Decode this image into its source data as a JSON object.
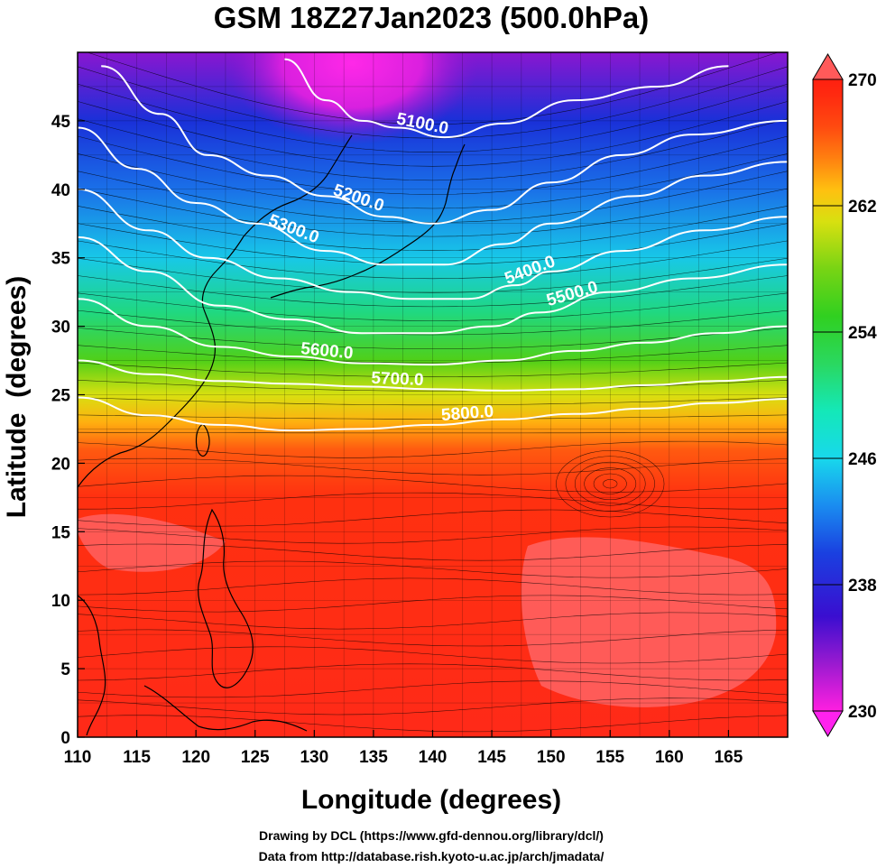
{
  "chart_data": {
    "type": "heatmap",
    "title": "GSM 18Z27Jan2023 (500.0hPa)",
    "xlabel": "Longitude (degrees)",
    "ylabel": "Latitude  (degrees)",
    "xlim": [
      110,
      170
    ],
    "ylim": [
      0,
      50
    ],
    "x_ticks": [
      110,
      115,
      120,
      125,
      130,
      135,
      140,
      145,
      150,
      155,
      160,
      165
    ],
    "y_ticks": [
      0,
      5,
      10,
      15,
      20,
      25,
      30,
      35,
      40,
      45
    ],
    "shading": {
      "quantity_range": [
        230,
        270
      ],
      "colorbar_ticks": [
        230,
        238,
        246,
        254,
        262,
        270
      ],
      "colorbar_stops": [
        {
          "v": 230,
          "c": "#ff1fe0"
        },
        {
          "v": 233,
          "c": "#9a1ad0"
        },
        {
          "v": 236,
          "c": "#3a0ed0"
        },
        {
          "v": 240,
          "c": "#1a40e0"
        },
        {
          "v": 243,
          "c": "#1a8cf0"
        },
        {
          "v": 246,
          "c": "#18d8ec"
        },
        {
          "v": 249,
          "c": "#14e8b8"
        },
        {
          "v": 252,
          "c": "#2ad860"
        },
        {
          "v": 255,
          "c": "#30d020"
        },
        {
          "v": 258,
          "c": "#78d414"
        },
        {
          "v": 261,
          "c": "#d8e010"
        },
        {
          "v": 263,
          "c": "#ffc010"
        },
        {
          "v": 265,
          "c": "#ff8010"
        },
        {
          "v": 267,
          "c": "#ff4a10"
        },
        {
          "v": 269,
          "c": "#ff2a10"
        },
        {
          "v": 270,
          "c": "#ff2010"
        }
      ]
    },
    "contours": [
      {
        "level": "5100.0",
        "points": [
          [
            127.5,
            49.5
          ],
          [
            131,
            46.5
          ],
          [
            134,
            45
          ],
          [
            137,
            44.5
          ],
          [
            141,
            43.8
          ],
          [
            146,
            44.8
          ],
          [
            152,
            46.5
          ],
          [
            159,
            47.5
          ],
          [
            165,
            49
          ]
        ]
      },
      {
        "level": "5200.0",
        "points": [
          [
            112,
            49
          ],
          [
            117,
            45.5
          ],
          [
            121,
            42.5
          ],
          [
            126,
            41
          ],
          [
            131,
            39.5
          ],
          [
            136,
            38
          ],
          [
            140,
            37.5
          ],
          [
            145,
            38.5
          ],
          [
            150,
            40.5
          ],
          [
            156,
            42.5
          ],
          [
            162,
            44
          ],
          [
            170,
            45
          ]
        ]
      },
      {
        "level": "5300.0",
        "points": [
          [
            110,
            44.5
          ],
          [
            115,
            41.5
          ],
          [
            120,
            39
          ],
          [
            125,
            37.5
          ],
          [
            131,
            35.5
          ],
          [
            136,
            34.5
          ],
          [
            141,
            34.5
          ],
          [
            146,
            36
          ],
          [
            150,
            37.5
          ],
          [
            157,
            39.5
          ],
          [
            163,
            41
          ],
          [
            170,
            42
          ]
        ]
      },
      {
        "level": "5400.0",
        "points": [
          [
            110,
            40
          ],
          [
            116,
            37
          ],
          [
            121,
            35
          ],
          [
            127,
            33.5
          ],
          [
            133,
            32.5
          ],
          [
            138,
            32
          ],
          [
            143,
            32
          ],
          [
            147,
            33
          ],
          [
            150,
            34
          ],
          [
            156,
            35.5
          ],
          [
            163,
            37
          ],
          [
            170,
            38
          ]
        ]
      },
      {
        "level": "5500.0",
        "points": [
          [
            110,
            36.5
          ],
          [
            116,
            34
          ],
          [
            122,
            31.5
          ],
          [
            128,
            30.5
          ],
          [
            134,
            29.5
          ],
          [
            140,
            29.5
          ],
          [
            145,
            30
          ],
          [
            149,
            31
          ],
          [
            155,
            32.5
          ],
          [
            162,
            33.5
          ],
          [
            170,
            34.5
          ]
        ]
      },
      {
        "level": "5600.0",
        "points": [
          [
            110,
            32
          ],
          [
            116,
            30
          ],
          [
            122,
            28.5
          ],
          [
            128,
            27.8
          ],
          [
            134,
            27.3
          ],
          [
            140,
            27.2
          ],
          [
            146,
            27.5
          ],
          [
            152,
            28.2
          ],
          [
            158,
            28.8
          ],
          [
            164,
            29.5
          ],
          [
            170,
            30
          ]
        ]
      },
      {
        "level": "5700.0",
        "points": [
          [
            110,
            27.5
          ],
          [
            116,
            26.5
          ],
          [
            122,
            26
          ],
          [
            128,
            25.8
          ],
          [
            134,
            25.6
          ],
          [
            140,
            25.4
          ],
          [
            146,
            25.3
          ],
          [
            152,
            25.4
          ],
          [
            158,
            25.7
          ],
          [
            164,
            26
          ],
          [
            170,
            26.3
          ]
        ]
      },
      {
        "level": "5800.0",
        "points": [
          [
            110,
            24.8
          ],
          [
            116,
            23.5
          ],
          [
            122,
            22.8
          ],
          [
            128,
            22.4
          ],
          [
            134,
            22.5
          ],
          [
            140,
            22.8
          ],
          [
            146,
            23.2
          ],
          [
            152,
            23.6
          ],
          [
            158,
            24
          ],
          [
            164,
            24.4
          ],
          [
            170,
            24.7
          ]
        ]
      }
    ],
    "colors": {
      "contour": "#ffffff",
      "coast": "#000000",
      "streamline": "#000000",
      "grid": "#000000"
    }
  },
  "credits": {
    "line1": "Drawing by DCL (https://www.gfd-dennou.org/library/dcl/)",
    "line2": "Data from http://database.rish.kyoto-u.ac.jp/arch/jmadata/"
  }
}
